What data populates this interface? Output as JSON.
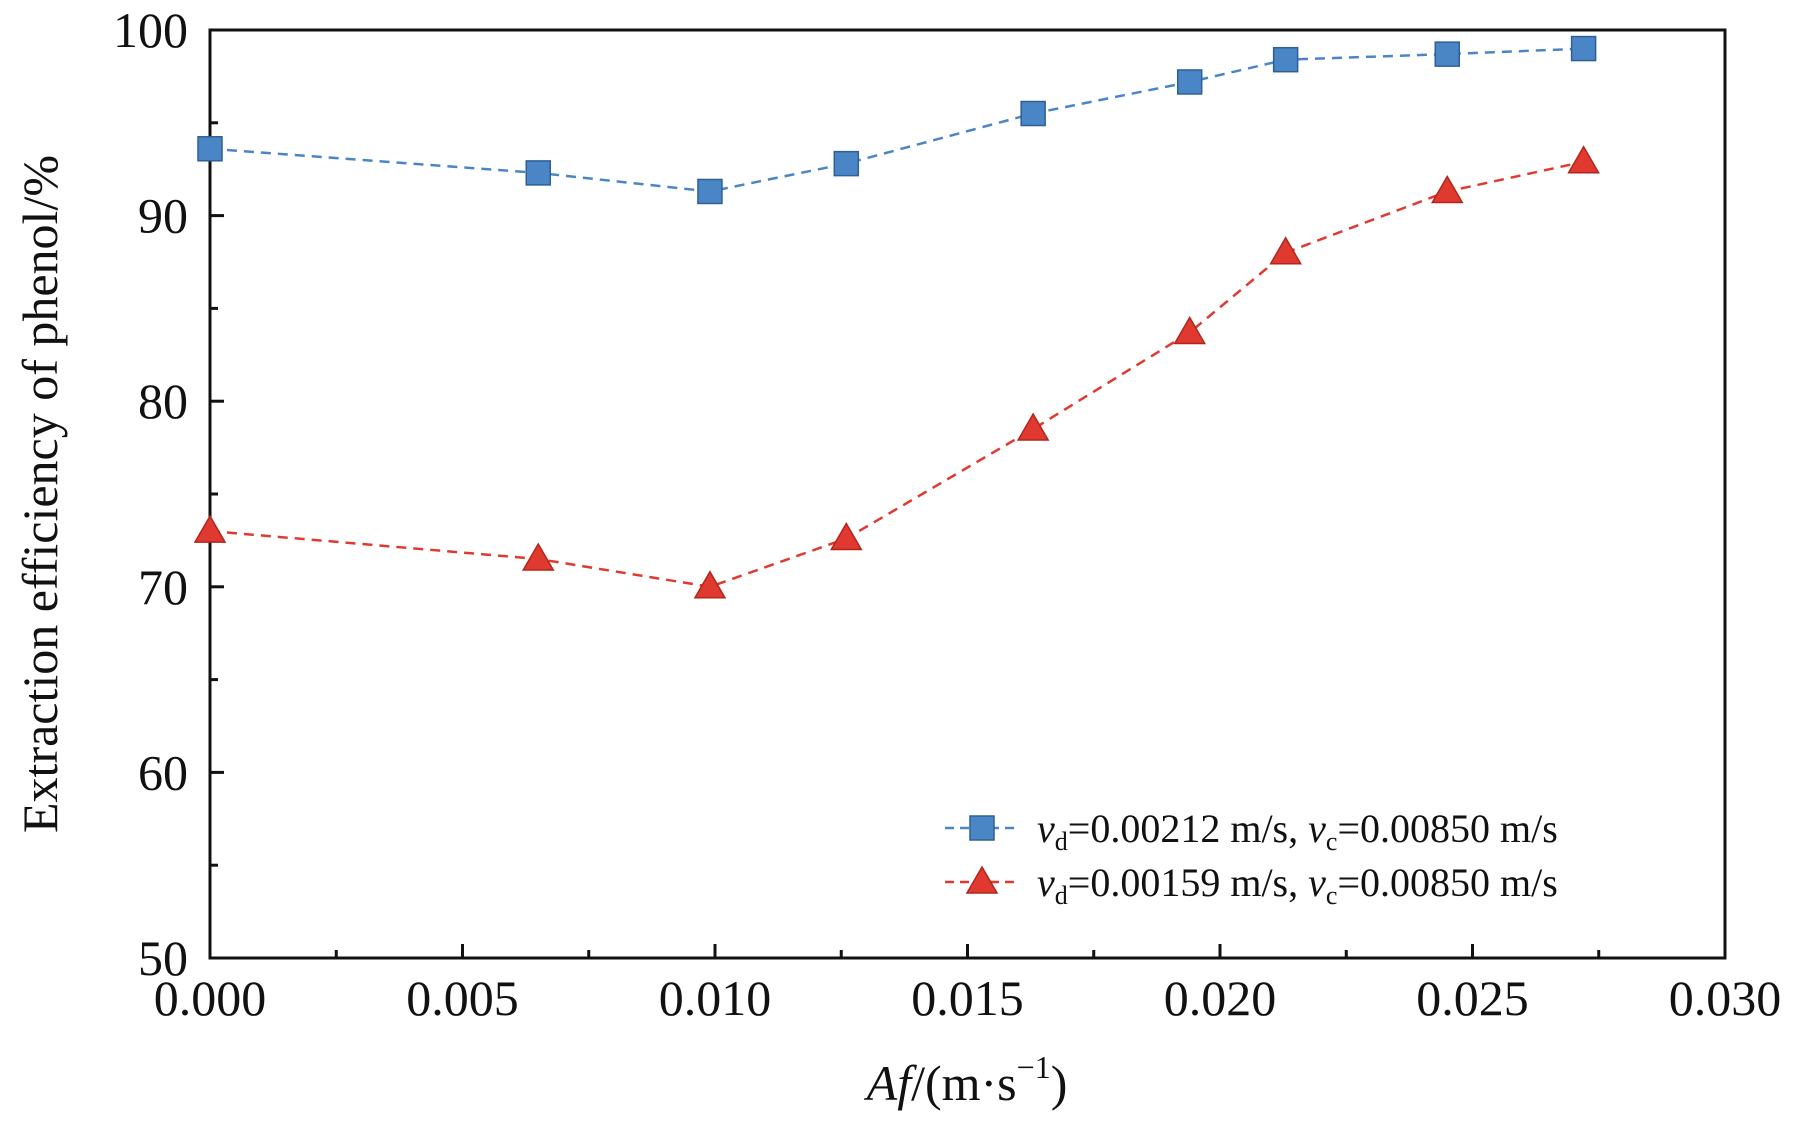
{
  "chart_data": {
    "type": "line",
    "xlabel": "Af/(m·s⁻¹)",
    "xlabel_parts": {
      "italic": "Af",
      "rest": "/(m·s",
      "sup": "−1",
      "close": ")"
    },
    "ylabel": "Extraction efficiency of phenol/%",
    "xlim": [
      0,
      0.03
    ],
    "ylim": [
      50,
      100
    ],
    "xticks": [
      "0.000",
      "0.005",
      "0.010",
      "0.015",
      "0.020",
      "0.025",
      "0.030"
    ],
    "yticks": [
      "50",
      "60",
      "70",
      "80",
      "90",
      "100"
    ],
    "grid": false,
    "legend_position": "bottom-right",
    "series": [
      {
        "name": "vd=0.00212 m/s, vc=0.00850 m/s",
        "legend": {
          "v1": "v",
          "sub1": "d",
          "mid": "=0.00212 m/s, ",
          "v2": "v",
          "sub2": "c",
          "end": "=0.00850 m/s"
        },
        "marker": "square",
        "color": "#4a86c5",
        "x": [
          0.0,
          0.0065,
          0.0099,
          0.0126,
          0.0163,
          0.0194,
          0.0213,
          0.0245,
          0.0272
        ],
        "y": [
          93.6,
          92.3,
          91.3,
          92.8,
          95.5,
          97.2,
          98.4,
          98.7,
          99.0
        ]
      },
      {
        "name": "vd=0.00159 m/s, vc=0.00850 m/s",
        "legend": {
          "v1": "v",
          "sub1": "d",
          "mid": "=0.00159 m/s, ",
          "v2": "v",
          "sub2": "c",
          "end": "=0.00850 m/s"
        },
        "marker": "triangle",
        "color": "#e03a30",
        "x": [
          0.0,
          0.0065,
          0.0099,
          0.0126,
          0.0163,
          0.0194,
          0.0213,
          0.0245,
          0.0272
        ],
        "y": [
          73.0,
          71.5,
          70.0,
          72.6,
          78.5,
          83.7,
          88.0,
          91.3,
          92.9
        ]
      }
    ]
  }
}
